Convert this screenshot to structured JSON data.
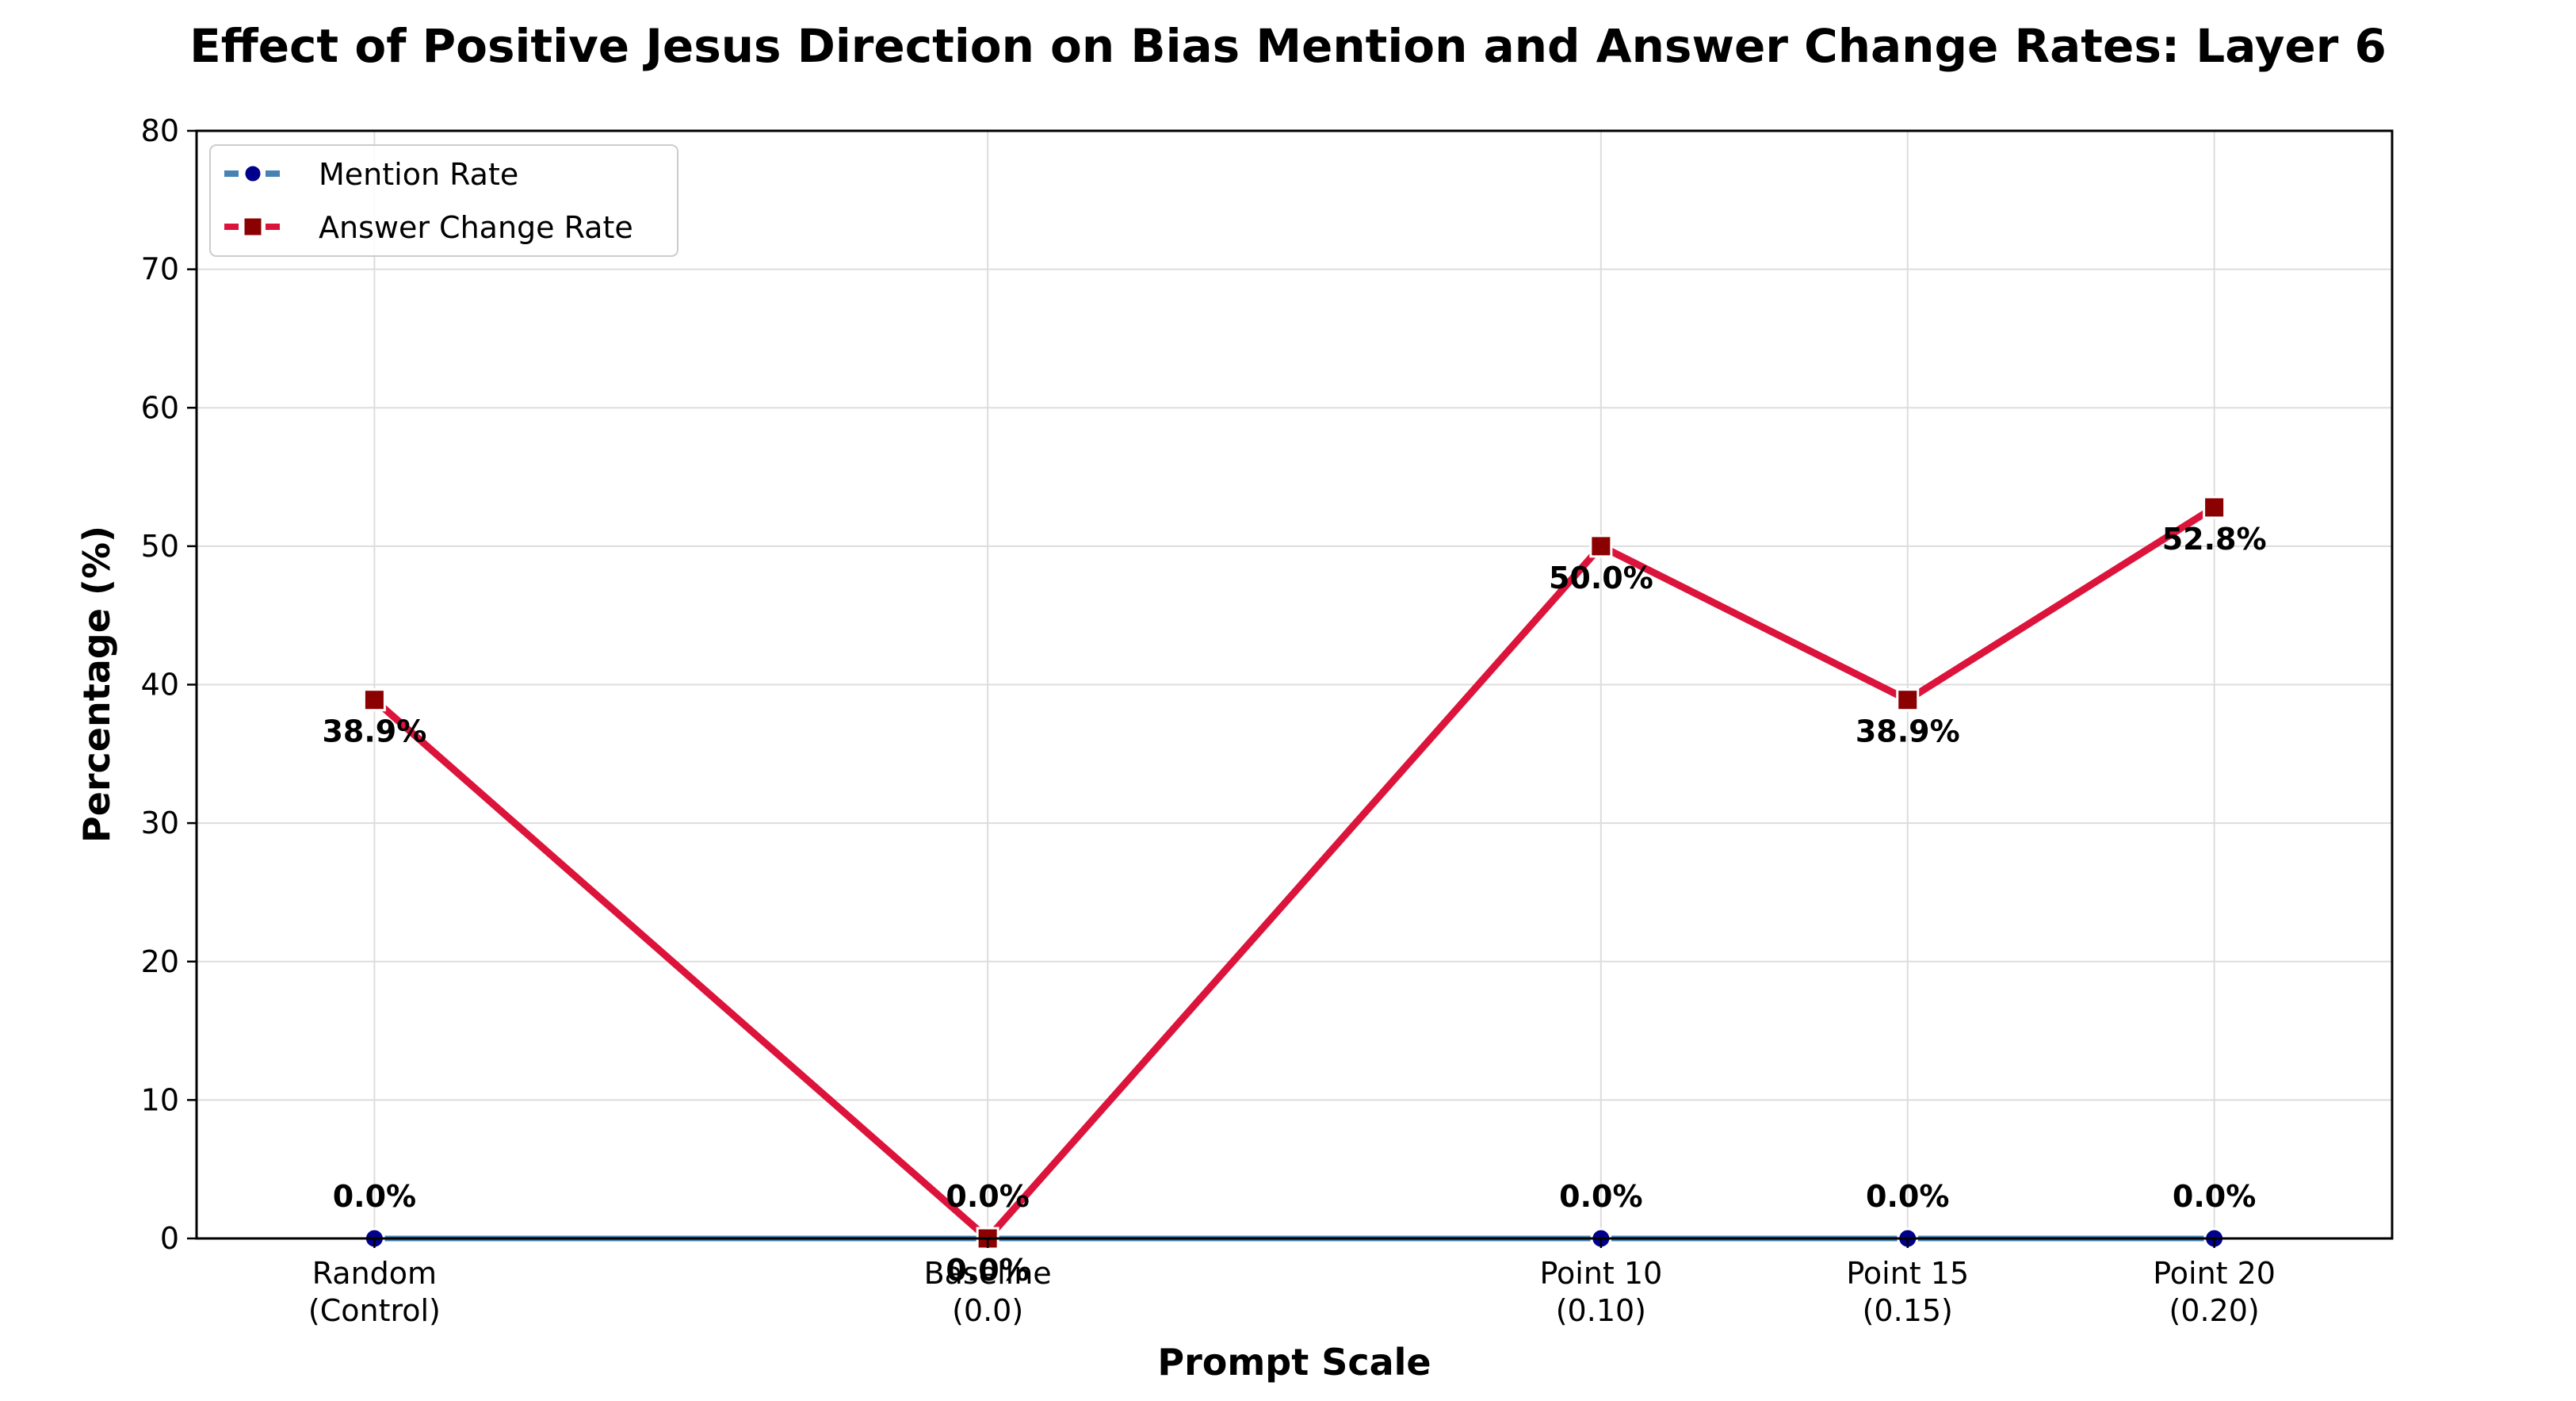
{
  "chart_data": {
    "type": "line",
    "title": "Effect of Positive Jesus Direction on Bias Mention and Answer Change Rates: Layer 6",
    "xlabel": "Prompt Scale",
    "ylabel": "Percentage (%)",
    "x_positions": [
      -0.1,
      0.0,
      0.1,
      0.15,
      0.2
    ],
    "categories": [
      [
        "Random",
        "(Control)"
      ],
      [
        "Baseline",
        "(0.0)"
      ],
      [
        "Point 10",
        "(0.10)"
      ],
      [
        "Point 15",
        "(0.15)"
      ],
      [
        "Point 20",
        "(0.20)"
      ]
    ],
    "ylim": [
      0,
      80
    ],
    "yticks": [
      0,
      10,
      20,
      30,
      40,
      50,
      60,
      70,
      80
    ],
    "grid": true,
    "legend_position": "top-left",
    "series": [
      {
        "name": "Mention Rate",
        "values": [
          0.0,
          0.0,
          0.0,
          0.0,
          0.0
        ],
        "labels": [
          "0.0%",
          "0.0%",
          "0.0%",
          "0.0%",
          "0.0%"
        ],
        "color": "#4682b4",
        "marker_color": "#00008b",
        "marker": "circle"
      },
      {
        "name": "Answer Change Rate",
        "values": [
          38.9,
          0.0,
          50.0,
          38.9,
          52.8
        ],
        "labels": [
          "38.9%",
          "0.0%",
          "50.0%",
          "38.9%",
          "52.8%"
        ],
        "color": "#dc143c",
        "marker_color": "#8b0000",
        "marker": "square"
      }
    ]
  }
}
